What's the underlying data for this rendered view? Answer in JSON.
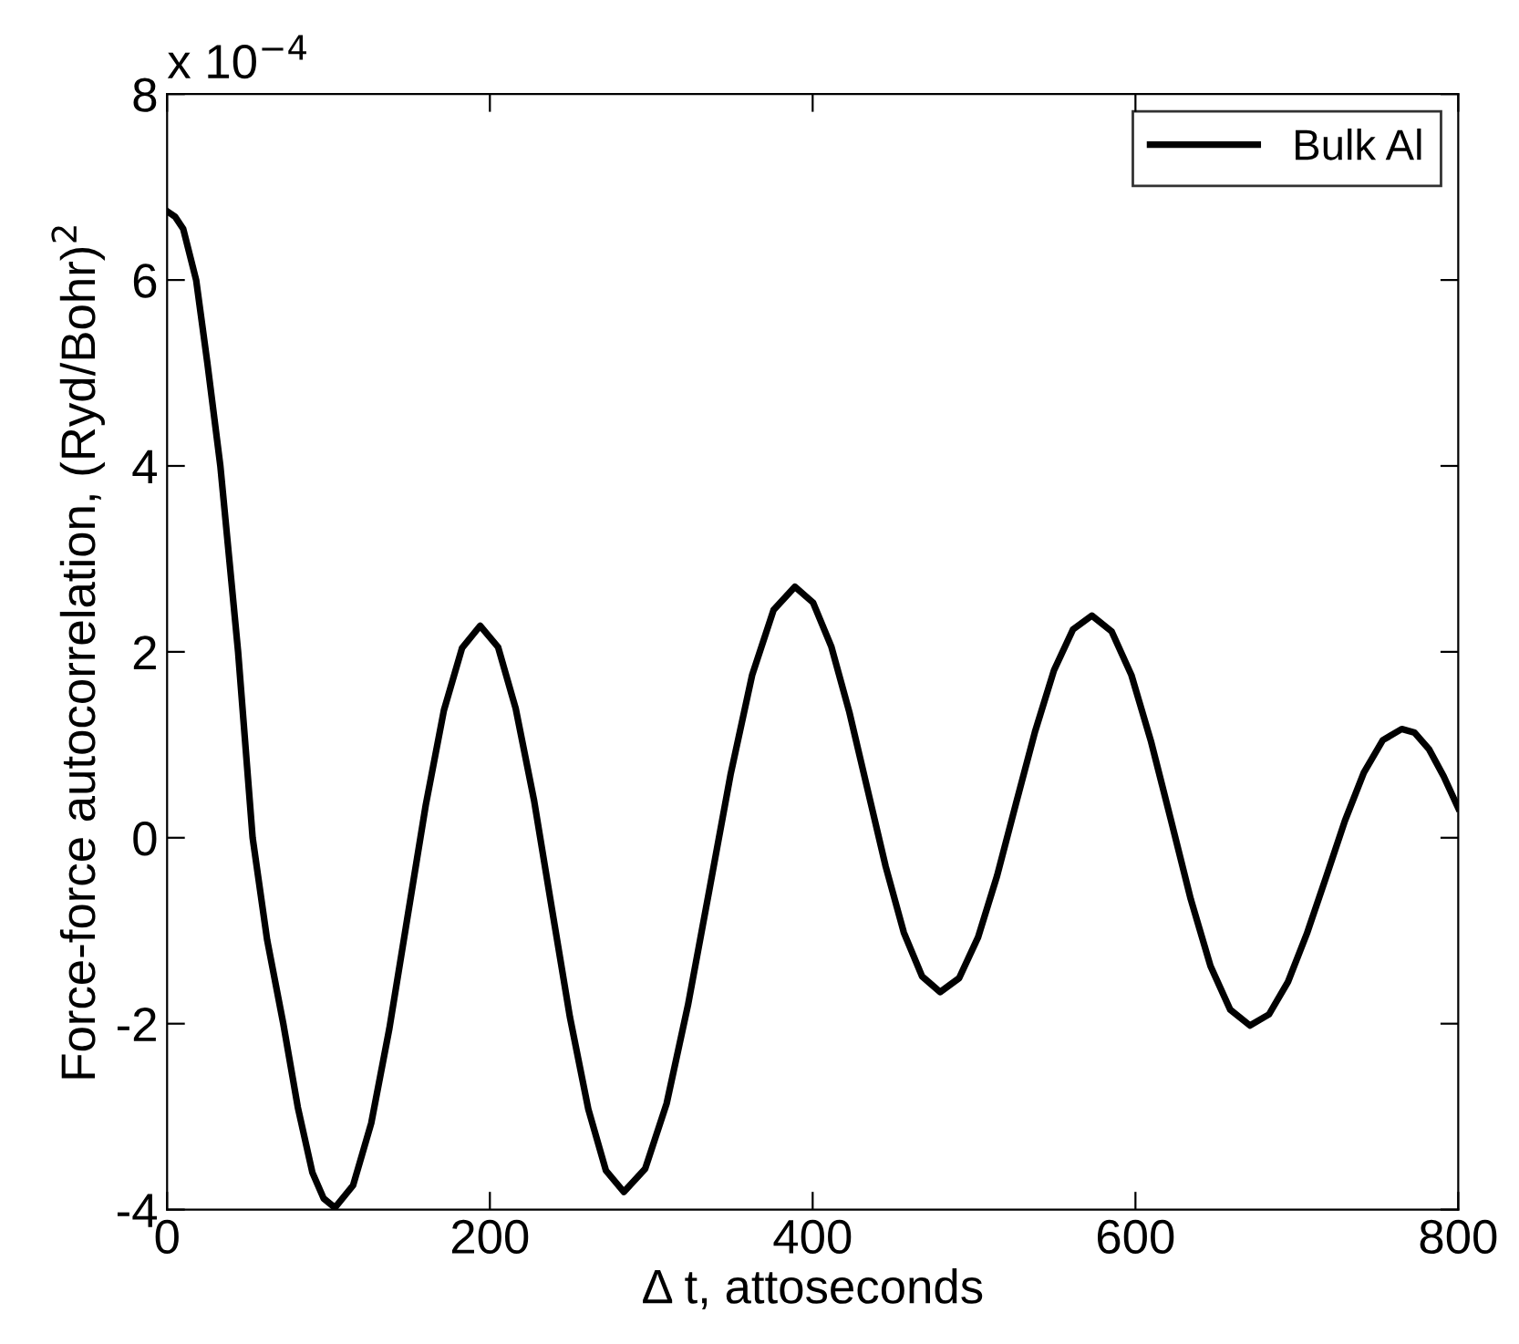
{
  "chart_data": {
    "type": "line",
    "xlabel": "Δ t, attoseconds",
    "ylabel": "Force-force autocorrelation, (Ryd/Bohr)$^{2}$",
    "annotations": [
      "x 10$^{−4}$"
    ],
    "xlim": [
      0,
      800
    ],
    "xticks": [
      0,
      200,
      400,
      600,
      800
    ],
    "ylim": [
      -4,
      8
    ],
    "yticks": [
      -4,
      -2,
      0,
      2,
      4,
      6,
      8
    ],
    "grid": false,
    "legend": "top right",
    "marker": "none",
    "line_style": "solid",
    "series": [
      {
        "name": "Bulk Al",
        "color": "#000000",
        "x": [
          0,
          5,
          10,
          18,
          25,
          33,
          44,
          53,
          62,
          72,
          81,
          90,
          97,
          104,
          115.25,
          126.5,
          137.75,
          149,
          160.25,
          171.5,
          182.75,
          194,
          205.1,
          216,
          227.4,
          238.5,
          249.6,
          261,
          271.9,
          283,
          296.25,
          309.5,
          322.75,
          336,
          349.25,
          362.5,
          375.75,
          389,
          400.25,
          411.5,
          422.75,
          434,
          445.25,
          456.5,
          467.75,
          479,
          490.75,
          502.5,
          514.25,
          526,
          537.75,
          549.5,
          561.25,
          573,
          585.25,
          597.5,
          609.75,
          622,
          634.25,
          646.5,
          658.75,
          671,
          682.75,
          694.5,
          706.25,
          718,
          729.75,
          741.5,
          753.25,
          765,
          773,
          782,
          791,
          800
        ],
        "values": [
          6.74,
          6.68,
          6.55,
          6.0,
          5.1,
          4.0,
          2.0,
          0,
          -1.1,
          -2.0,
          -2.9,
          -3.6,
          -3.88,
          -3.98,
          -3.74,
          -3.07,
          -2.05,
          -0.85,
          0.35,
          1.37,
          2.04,
          2.28,
          2.05,
          1.39,
          0.4,
          -0.77,
          -1.93,
          -2.92,
          -3.58,
          -3.81,
          -3.56,
          -2.86,
          -1.8,
          -0.56,
          0.69,
          1.75,
          2.45,
          2.7,
          2.53,
          2.06,
          1.35,
          0.52,
          -0.31,
          -1.02,
          -1.49,
          -1.66,
          -1.51,
          -1.07,
          -0.41,
          0.37,
          1.14,
          1.8,
          2.24,
          2.39,
          2.22,
          1.75,
          1.03,
          0.19,
          -0.66,
          -1.38,
          -1.85,
          -2.02,
          -1.9,
          -1.55,
          -1.03,
          -0.43,
          0.18,
          0.7,
          1.05,
          1.17,
          1.13,
          0.95,
          0.66,
          0.32
        ]
      }
    ]
  }
}
